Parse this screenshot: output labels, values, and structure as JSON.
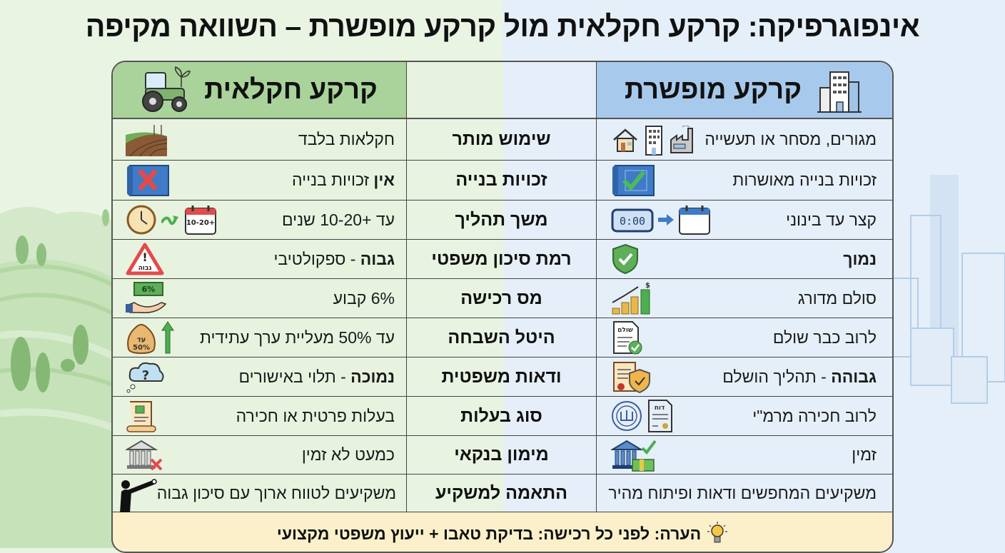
{
  "title": "אינפוגרפיקה: קרקע חקלאית מול קרקע מופשרת – השוואה מקיפה",
  "columns": {
    "rezoned": {
      "title": "קרקע מופשרת",
      "icon": "office-building-icon",
      "color": "#a7c9ec"
    },
    "criteria": {
      "title": ""
    },
    "agricultural": {
      "title": "קרקע חקלאית",
      "icon": "tractor-icon",
      "color": "#a9d39a"
    }
  },
  "rows": [
    {
      "criterion": "שימוש מותר",
      "rezoned": {
        "bold": "",
        "text": "מגורים, מסחר או תעשייה",
        "icons": [
          "house-icon",
          "building-icon",
          "factory-icon"
        ]
      },
      "agricultural": {
        "bold": "",
        "text": "חקלאות בלבד",
        "icons": [
          "farm-field-icon"
        ]
      }
    },
    {
      "criterion": "זכויות בנייה",
      "rezoned": {
        "bold": "",
        "text": "זכויות בנייה מאושרות",
        "icons": [
          "blueprint-check-icon"
        ]
      },
      "agricultural": {
        "bold": "אין",
        "text": " זכויות בנייה",
        "icons": [
          "blueprint-x-icon"
        ]
      }
    },
    {
      "criterion": "משך תהליך",
      "rezoned": {
        "bold": "",
        "text": "קצר עד בינוני",
        "icons": [
          "digital-clock-icon",
          "arrow-right-icon",
          "calendar-icon"
        ],
        "calendar_label": "קצר עד בינוני",
        "clock_label": "0:00"
      },
      "agricultural": {
        "bold": "",
        "text": "עד +10-20 שנים",
        "icons": [
          "clock-icon",
          "arrow-right-icon",
          "calendar-icon"
        ],
        "calendar_label": "10-20+ שנים"
      }
    },
    {
      "criterion": "רמת סיכון משפטי",
      "rezoned": {
        "bold": "נמוך",
        "text": "",
        "icons": [
          "shield-check-icon"
        ]
      },
      "agricultural": {
        "bold": "גבוה",
        "text": " - ספקולטיבי",
        "icons": [
          "warning-triangle-icon"
        ],
        "warning_label": "גבוה"
      }
    },
    {
      "criterion": "מס רכישה",
      "rezoned": {
        "bold": "",
        "text": "סולם מדורג",
        "icons": [
          "coins-growth-icon"
        ]
      },
      "agricultural": {
        "bold": "",
        "text": "6% קבוע",
        "icons": [
          "hand-money-icon"
        ],
        "money_label": "6%"
      }
    },
    {
      "criterion": "היטל השבחה",
      "rezoned": {
        "bold": "",
        "text": "לרוב כבר שולם",
        "icons": [
          "paid-document-icon"
        ],
        "doc_label": "שולם"
      },
      "agricultural": {
        "bold": "",
        "text": "עד 50% מעליית ערך עתידית",
        "icons": [
          "money-bag-icon",
          "arrow-up-icon"
        ],
        "bag_label": "עד 50%"
      }
    },
    {
      "criterion": "ודאות משפטית",
      "rezoned": {
        "bold": "גבוהה",
        "text": " - תהליך הושלם",
        "icons": [
          "certificate-shield-icon"
        ]
      },
      "agricultural": {
        "bold": "נמוכה",
        "text": " - תלוי באישורים",
        "icons": [
          "question-cloud-icon"
        ]
      }
    },
    {
      "criterion": "סוג בעלות",
      "rezoned": {
        "bold": "",
        "text": "לרוב חכירה מרמ\"י",
        "icons": [
          "state-seal-icon",
          "lease-document-icon"
        ]
      },
      "agricultural": {
        "bold": "",
        "text": "בעלות פרטית או חכירה",
        "icons": [
          "deed-scroll-icon"
        ]
      }
    },
    {
      "criterion": "מימון בנקאי",
      "rezoned": {
        "bold": "",
        "text": "זמין",
        "icons": [
          "bank-cash-check-icon"
        ]
      },
      "agricultural": {
        "bold": "",
        "text": "כמעט לא זמין",
        "icons": [
          "bank-x-icon"
        ]
      }
    },
    {
      "criterion": "התאמה למשקיע",
      "rezoned": {
        "bold": "",
        "text": "משקיעים המחפשים ודאות ופיתוח מהיר",
        "icons": []
      },
      "agricultural": {
        "bold": "",
        "text": "משקיעים לטווח ארוך עם סיכון גבוה",
        "icons": [
          "telescope-person-icon"
        ]
      }
    }
  ],
  "footer": {
    "text": "הערה: לפני כל רכישה: בדיקת טאבו + ייעוץ משפטי מקצועי",
    "icon": "lightbulb-icon"
  },
  "colors": {
    "green_header": "#a9d39a",
    "blue_header": "#a7c9ec",
    "green_cell": "#e7f3df",
    "blue_cell": "#e5eff9",
    "footer": "#fbf0c9"
  }
}
